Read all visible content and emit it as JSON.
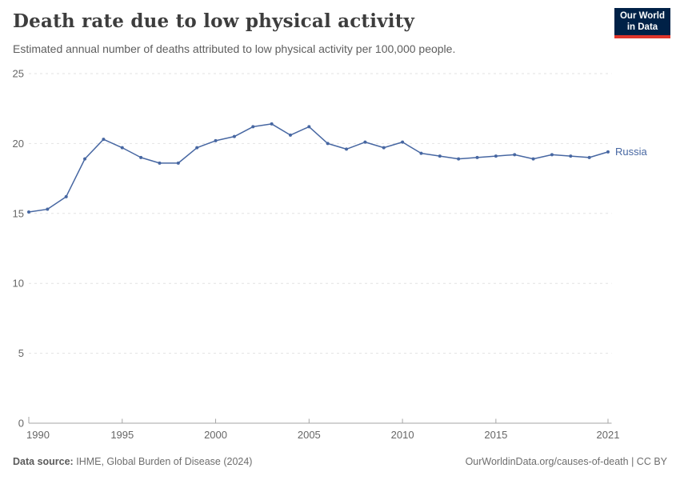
{
  "header": {
    "title": "Death rate due to low physical activity",
    "subtitle": "Estimated annual number of deaths attributed to low physical activity per 100,000 people.",
    "logo": {
      "line1": "Our World",
      "line2": "in Data"
    }
  },
  "chart_data": {
    "type": "line",
    "title": "Death rate due to low physical activity",
    "x": [
      1990,
      1991,
      1992,
      1993,
      1994,
      1995,
      1996,
      1997,
      1998,
      1999,
      2000,
      2001,
      2002,
      2003,
      2004,
      2005,
      2006,
      2007,
      2008,
      2009,
      2010,
      2011,
      2012,
      2013,
      2014,
      2015,
      2016,
      2017,
      2018,
      2019,
      2020,
      2021
    ],
    "series": [
      {
        "name": "Russia",
        "color": "#4767a2",
        "values": [
          15.1,
          15.3,
          16.2,
          18.9,
          20.3,
          19.7,
          19.0,
          18.6,
          18.6,
          19.7,
          20.2,
          20.5,
          21.2,
          21.4,
          20.6,
          21.2,
          20.0,
          19.6,
          20.1,
          19.7,
          20.1,
          19.3,
          19.1,
          18.9,
          19.0,
          19.1,
          19.2,
          18.9,
          19.2,
          19.1,
          19.0,
          19.4
        ]
      }
    ],
    "xlabel": "",
    "ylabel": "",
    "ylim": [
      0,
      25
    ],
    "xlim": [
      1990,
      2021
    ],
    "y_ticks": [
      0,
      5,
      10,
      15,
      20,
      25
    ],
    "x_ticks": [
      1990,
      1995,
      2000,
      2005,
      2010,
      2015,
      2021
    ],
    "grid": "horizontal-dashed",
    "legend_position": "end-of-line-label"
  },
  "footer": {
    "data_source_label": "Data source:",
    "data_source_value": "IHME, Global Burden of Disease (2024)",
    "attribution": "OurWorldinData.org/causes-of-death | CC BY"
  },
  "colors": {
    "line": "#4767a2",
    "logo_bg": "#002147",
    "logo_accent": "#e0352b",
    "grid": "#e2e2e2",
    "axis": "#a5a5a5",
    "tick_label": "#666666"
  }
}
